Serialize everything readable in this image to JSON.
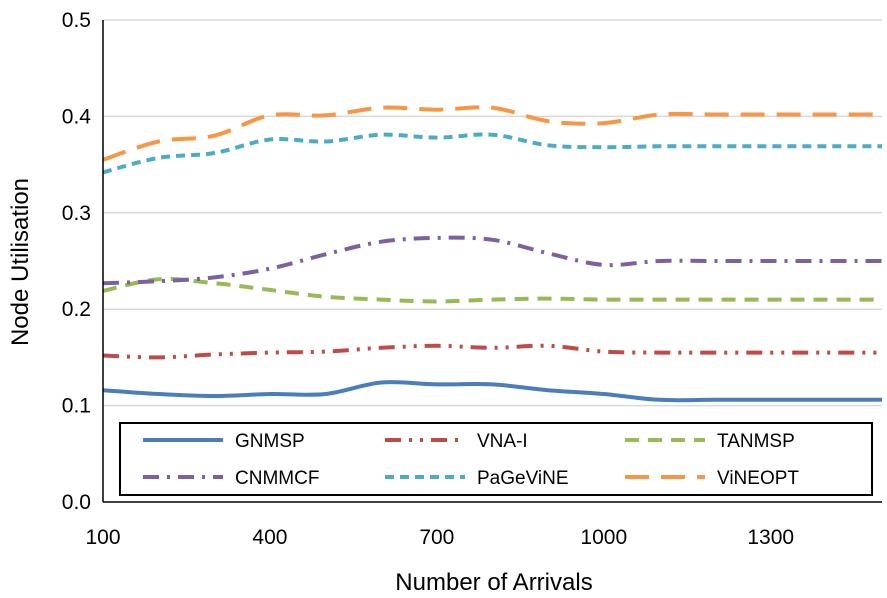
{
  "chart_data": {
    "type": "line",
    "title": "",
    "xlabel": "Number of Arrivals",
    "ylabel": "Node Utilisation",
    "xlim": [
      100,
      1500
    ],
    "ylim": [
      0,
      0.5
    ],
    "x_ticks": [
      100,
      400,
      700,
      1000,
      1300
    ],
    "y_ticks": [
      0.0,
      0.1,
      0.2,
      0.3,
      0.4,
      0.5
    ],
    "y_tick_labels": [
      "0.0",
      "0.1",
      "0.2",
      "0.3",
      "0.4",
      "0.5"
    ],
    "grid": "horizontal",
    "legend_position": "bottom-inside",
    "x": [
      100,
      200,
      300,
      400,
      500,
      600,
      700,
      800,
      900,
      1000,
      1100,
      1200,
      1300,
      1400,
      1500
    ],
    "series": [
      {
        "name": "GNMSP",
        "color": "#4a7ebb",
        "dash": "solid",
        "values": [
          0.116,
          0.112,
          0.11,
          0.112,
          0.112,
          0.124,
          0.122,
          0.122,
          0.116,
          0.112,
          0.106,
          0.106,
          0.106,
          0.106,
          0.106
        ]
      },
      {
        "name": "VNA-I",
        "color": "#be4b48",
        "dash": "dash-dot-dot",
        "values": [
          0.152,
          0.15,
          0.153,
          0.155,
          0.156,
          0.16,
          0.162,
          0.16,
          0.162,
          0.156,
          0.155,
          0.155,
          0.155,
          0.155,
          0.155
        ]
      },
      {
        "name": "TANMSP",
        "color": "#98b954",
        "dash": "dash",
        "values": [
          0.219,
          0.231,
          0.227,
          0.22,
          0.213,
          0.21,
          0.208,
          0.21,
          0.211,
          0.21,
          0.21,
          0.21,
          0.21,
          0.21,
          0.21
        ]
      },
      {
        "name": "CNMMCF",
        "color": "#7d60a0",
        "dash": "dash-dot",
        "values": [
          0.227,
          0.229,
          0.233,
          0.242,
          0.257,
          0.27,
          0.274,
          0.272,
          0.258,
          0.246,
          0.25,
          0.25,
          0.25,
          0.25,
          0.25
        ]
      },
      {
        "name": "PaGeViNE",
        "color": "#4bacc6",
        "dash": "short-dash",
        "values": [
          0.342,
          0.357,
          0.362,
          0.376,
          0.374,
          0.381,
          0.378,
          0.381,
          0.37,
          0.368,
          0.369,
          0.369,
          0.369,
          0.369,
          0.369
        ]
      },
      {
        "name": "ViNEOPT",
        "color": "#f79646",
        "dash": "long-dash",
        "values": [
          0.355,
          0.374,
          0.38,
          0.401,
          0.401,
          0.409,
          0.407,
          0.409,
          0.395,
          0.393,
          0.402,
          0.402,
          0.402,
          0.402,
          0.402
        ]
      }
    ]
  }
}
